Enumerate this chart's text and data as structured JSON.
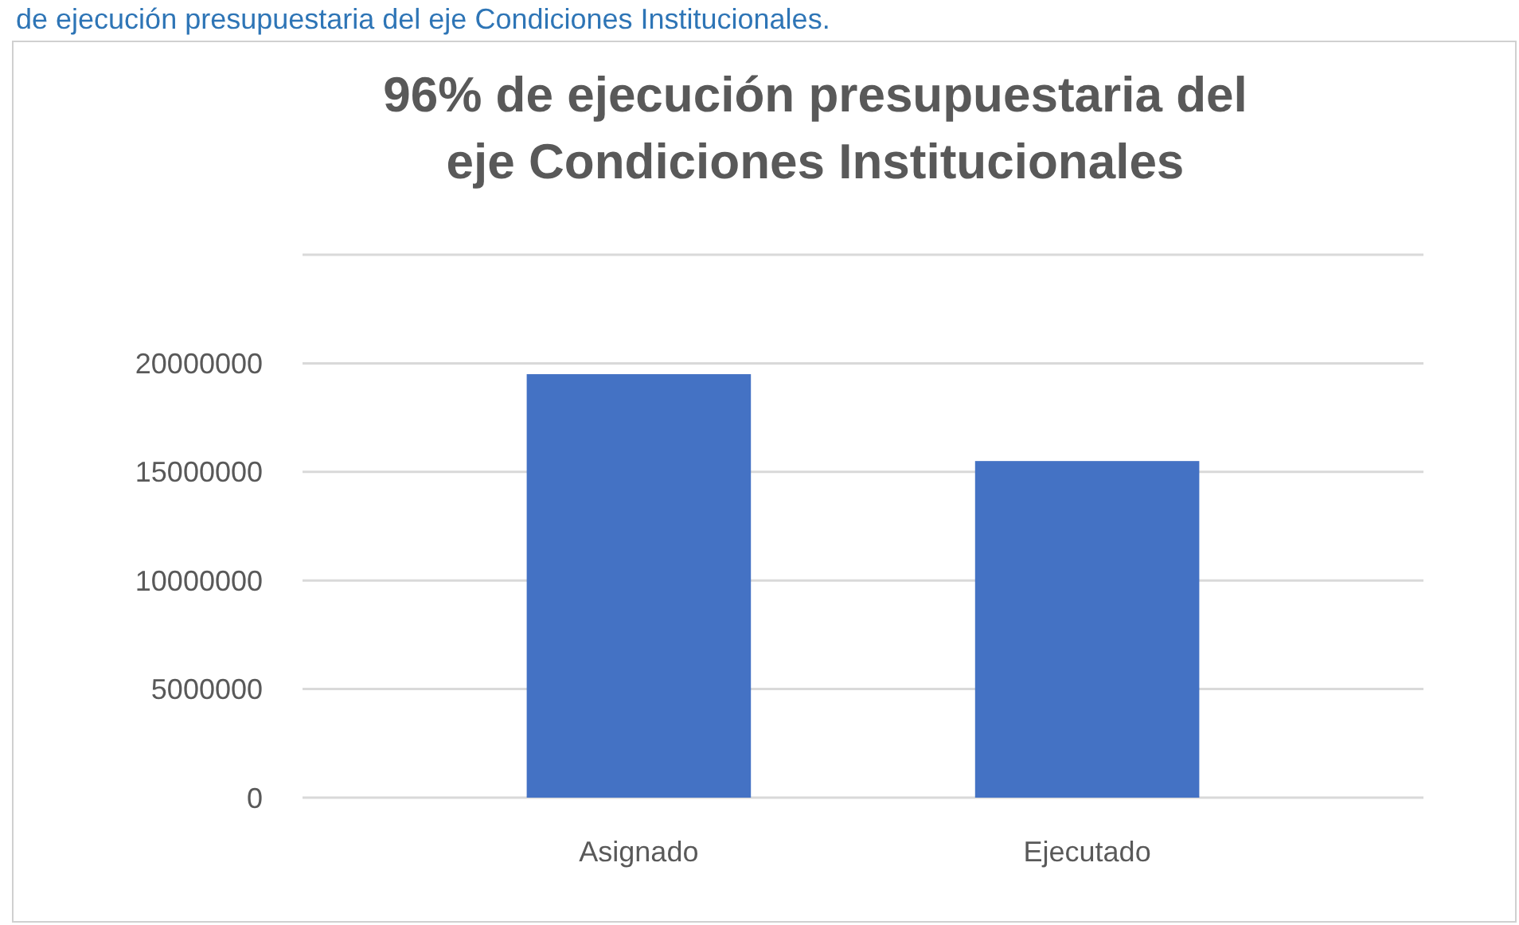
{
  "chart_data": {
    "type": "bar",
    "title": "96% de ejecución presupuestaria del eje Condiciones Institucionales",
    "annotations": [
      "de ejecución presupuestaria del eje Condiciones Institucionales."
    ],
    "categories": [
      "Asignado",
      "Ejecutado"
    ],
    "values": [
      19500000,
      15500000
    ],
    "color": "#4472c4",
    "ylim": [
      0,
      25000000
    ],
    "yticks": [
      0,
      5000000,
      10000000,
      15000000,
      20000000,
      {
        "value": 25000000,
        "label": null
      }
    ],
    "grid": "y"
  }
}
